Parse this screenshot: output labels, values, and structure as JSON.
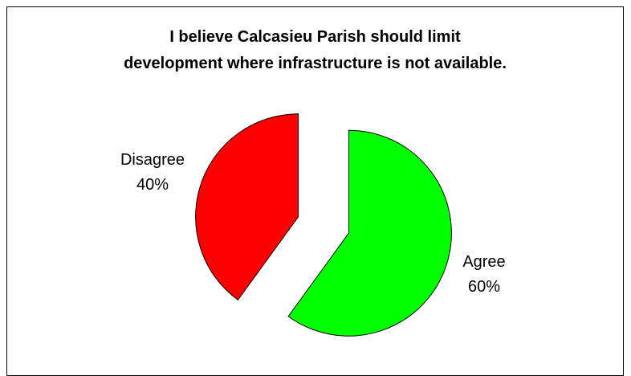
{
  "chart_data": {
    "type": "pie",
    "title": "I believe Calcasieu Parish should limit\ndevelopment where infrastructure is not available.",
    "categories": [
      "Agree",
      "Disagree"
    ],
    "values": [
      60,
      40
    ],
    "value_labels": [
      "60%",
      "40%"
    ],
    "colors": [
      "#00ff00",
      "#ff0000"
    ],
    "exploded": true
  }
}
